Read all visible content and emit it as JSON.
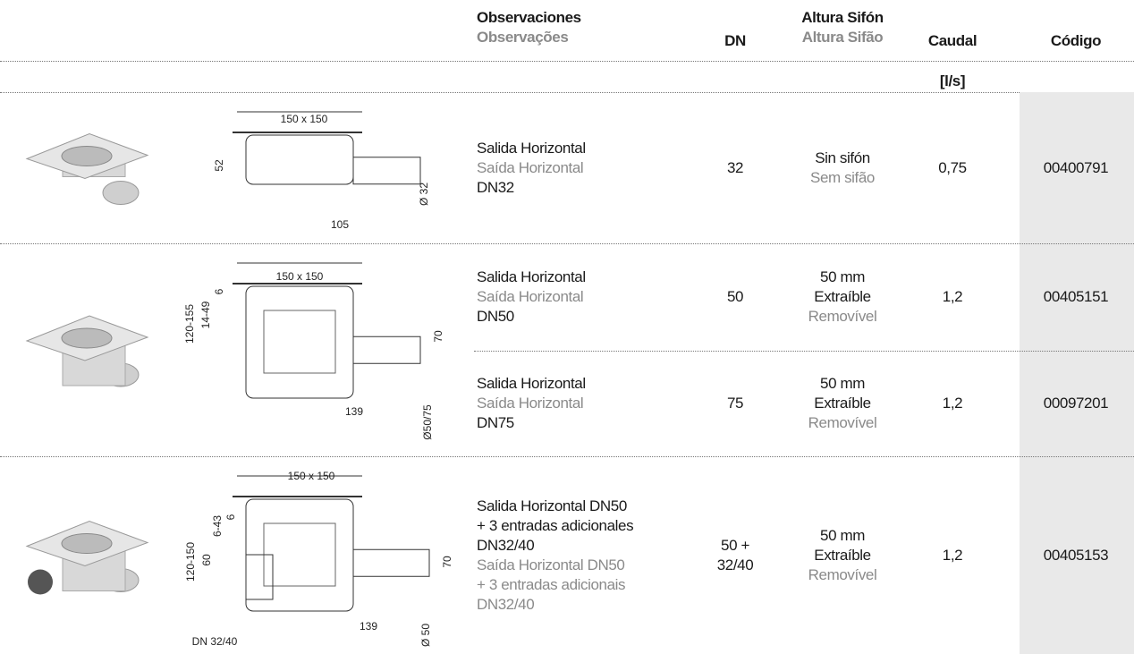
{
  "header": {
    "observaciones": "Observaciones",
    "observacoes": "Observações",
    "dn": "DN",
    "altura_sifon": "Altura Sifón",
    "altura_sifao": "Altura Sifão",
    "caudal": "Caudal",
    "codigo": "Código",
    "caudal_unit": "[l/s]"
  },
  "groups": [
    {
      "drawing_labels": [
        "150 x 150",
        "52",
        "105",
        "Ø 32"
      ],
      "rows": [
        {
          "observaciones": [
            {
              "text": "Salida Horizontal",
              "style": "primary"
            },
            {
              "text": "Saída Horizontal",
              "style": "secondary"
            },
            {
              "text": "DN32",
              "style": "primary"
            }
          ],
          "dn": [
            "32"
          ],
          "altura": [
            {
              "text": "Sin sifón",
              "style": "primary"
            },
            {
              "text": "Sem sifão",
              "style": "secondary"
            }
          ],
          "caudal": "0,75",
          "codigo": "00400791"
        }
      ]
    },
    {
      "drawing_labels": [
        "150 x 150",
        "6",
        "14-49",
        "120-155",
        "70",
        "139",
        "Ø50/75"
      ],
      "rows": [
        {
          "observaciones": [
            {
              "text": "Salida Horizontal",
              "style": "primary"
            },
            {
              "text": "Saída Horizontal",
              "style": "secondary"
            },
            {
              "text": "DN50",
              "style": "primary"
            }
          ],
          "dn": [
            "50"
          ],
          "altura": [
            {
              "text": "50 mm",
              "style": "primary"
            },
            {
              "text": "Extraíble",
              "style": "primary"
            },
            {
              "text": "Removível",
              "style": "secondary"
            }
          ],
          "caudal": "1,2",
          "codigo": "00405151"
        },
        {
          "observaciones": [
            {
              "text": "Salida Horizontal",
              "style": "primary"
            },
            {
              "text": "Saída Horizontal",
              "style": "secondary"
            },
            {
              "text": "DN75",
              "style": "primary"
            }
          ],
          "dn": [
            "75"
          ],
          "altura": [
            {
              "text": "50 mm",
              "style": "primary"
            },
            {
              "text": "Extraíble",
              "style": "primary"
            },
            {
              "text": "Removível",
              "style": "secondary"
            }
          ],
          "caudal": "1,2",
          "codigo": "00097201"
        }
      ]
    },
    {
      "drawing_labels": [
        "150 x 150",
        "6",
        "6-43",
        "60",
        "120-150",
        "70",
        "139",
        "Ø 50",
        "DN 32/40"
      ],
      "rows": [
        {
          "observaciones": [
            {
              "text": "Salida Horizontal DN50",
              "style": "primary"
            },
            {
              "text": "+ 3 entradas adicionales",
              "style": "primary"
            },
            {
              "text": "DN32/40",
              "style": "primary"
            },
            {
              "text": "Saída Horizontal DN50",
              "style": "secondary"
            },
            {
              "text": "+ 3 entradas adicionais",
              "style": "secondary"
            },
            {
              "text": "DN32/40",
              "style": "secondary"
            }
          ],
          "dn": [
            "50 +",
            "32/40"
          ],
          "altura": [
            {
              "text": "50 mm",
              "style": "primary"
            },
            {
              "text": "Extraíble",
              "style": "primary"
            },
            {
              "text": "Removível",
              "style": "secondary"
            }
          ],
          "caudal": "1,2",
          "codigo": "00405153"
        }
      ]
    }
  ]
}
